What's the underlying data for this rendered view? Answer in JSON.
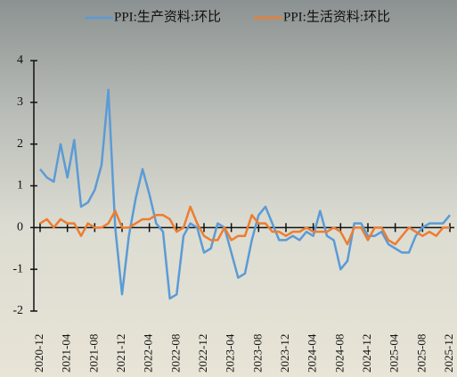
{
  "chart_data": {
    "type": "line",
    "categories": [
      "2020-12",
      null,
      null,
      null,
      "2021-04",
      null,
      null,
      null,
      "2021-08",
      null,
      null,
      null,
      "2021-12",
      null,
      null,
      null,
      "2022-04",
      null,
      null,
      null,
      "2022-08",
      null,
      null,
      null,
      "2022-12",
      null,
      null,
      null,
      "2023-04",
      null,
      null,
      null,
      "2023-08",
      null,
      null,
      null,
      "2023-12",
      null,
      null,
      null,
      "2024-04",
      null,
      null,
      null,
      "2024-08",
      null,
      null,
      null,
      "2024-12",
      null,
      null,
      null,
      "2025-04",
      null,
      null,
      null,
      "2025-08",
      null,
      null,
      null,
      "2025-12"
    ],
    "series": [
      {
        "name": "PPI:生产资料:环比",
        "color": "#5b9bd5",
        "values": [
          1.4,
          1.2,
          1.1,
          2.0,
          1.2,
          2.1,
          0.5,
          0.6,
          0.9,
          1.5,
          3.3,
          0.0,
          -1.6,
          -0.2,
          0.7,
          1.4,
          0.8,
          0.1,
          -0.1,
          -1.7,
          -1.6,
          -0.2,
          0.1,
          0.0,
          -0.6,
          -0.5,
          0.1,
          0.0,
          -0.6,
          -1.2,
          -1.1,
          -0.3,
          0.3,
          0.5,
          0.1,
          -0.3,
          -0.3,
          -0.2,
          -0.3,
          -0.1,
          -0.2,
          0.4,
          -0.2,
          -0.3,
          -1.0,
          -0.8,
          0.1,
          0.1,
          -0.2,
          -0.2,
          -0.1,
          -0.4,
          -0.5,
          -0.6,
          -0.6,
          -0.2,
          0.0,
          0.1,
          0.1,
          0.1,
          0.3
        ]
      },
      {
        "name": "PPI:生活资料:环比",
        "color": "#ed7d31",
        "values": [
          0.1,
          0.2,
          0.0,
          0.2,
          0.1,
          0.1,
          -0.2,
          0.1,
          0.0,
          0.0,
          0.1,
          0.4,
          0.0,
          0.0,
          0.1,
          0.2,
          0.2,
          0.3,
          0.3,
          0.2,
          -0.1,
          0.0,
          0.5,
          0.1,
          -0.2,
          -0.3,
          -0.3,
          0.0,
          -0.3,
          -0.2,
          -0.2,
          0.3,
          0.1,
          0.1,
          -0.1,
          -0.1,
          -0.2,
          -0.1,
          -0.1,
          0.0,
          -0.1,
          -0.1,
          -0.1,
          0.0,
          -0.1,
          -0.4,
          0.0,
          0.0,
          -0.3,
          0.0,
          0.0,
          -0.3,
          -0.4,
          -0.2,
          0.0,
          -0.1,
          -0.2,
          -0.1,
          -0.2,
          0.0,
          0.0
        ]
      }
    ],
    "ylim": [
      -2,
      4
    ],
    "yticks": [
      -2,
      -1,
      0,
      1,
      2,
      3,
      4
    ],
    "legend": "top"
  }
}
